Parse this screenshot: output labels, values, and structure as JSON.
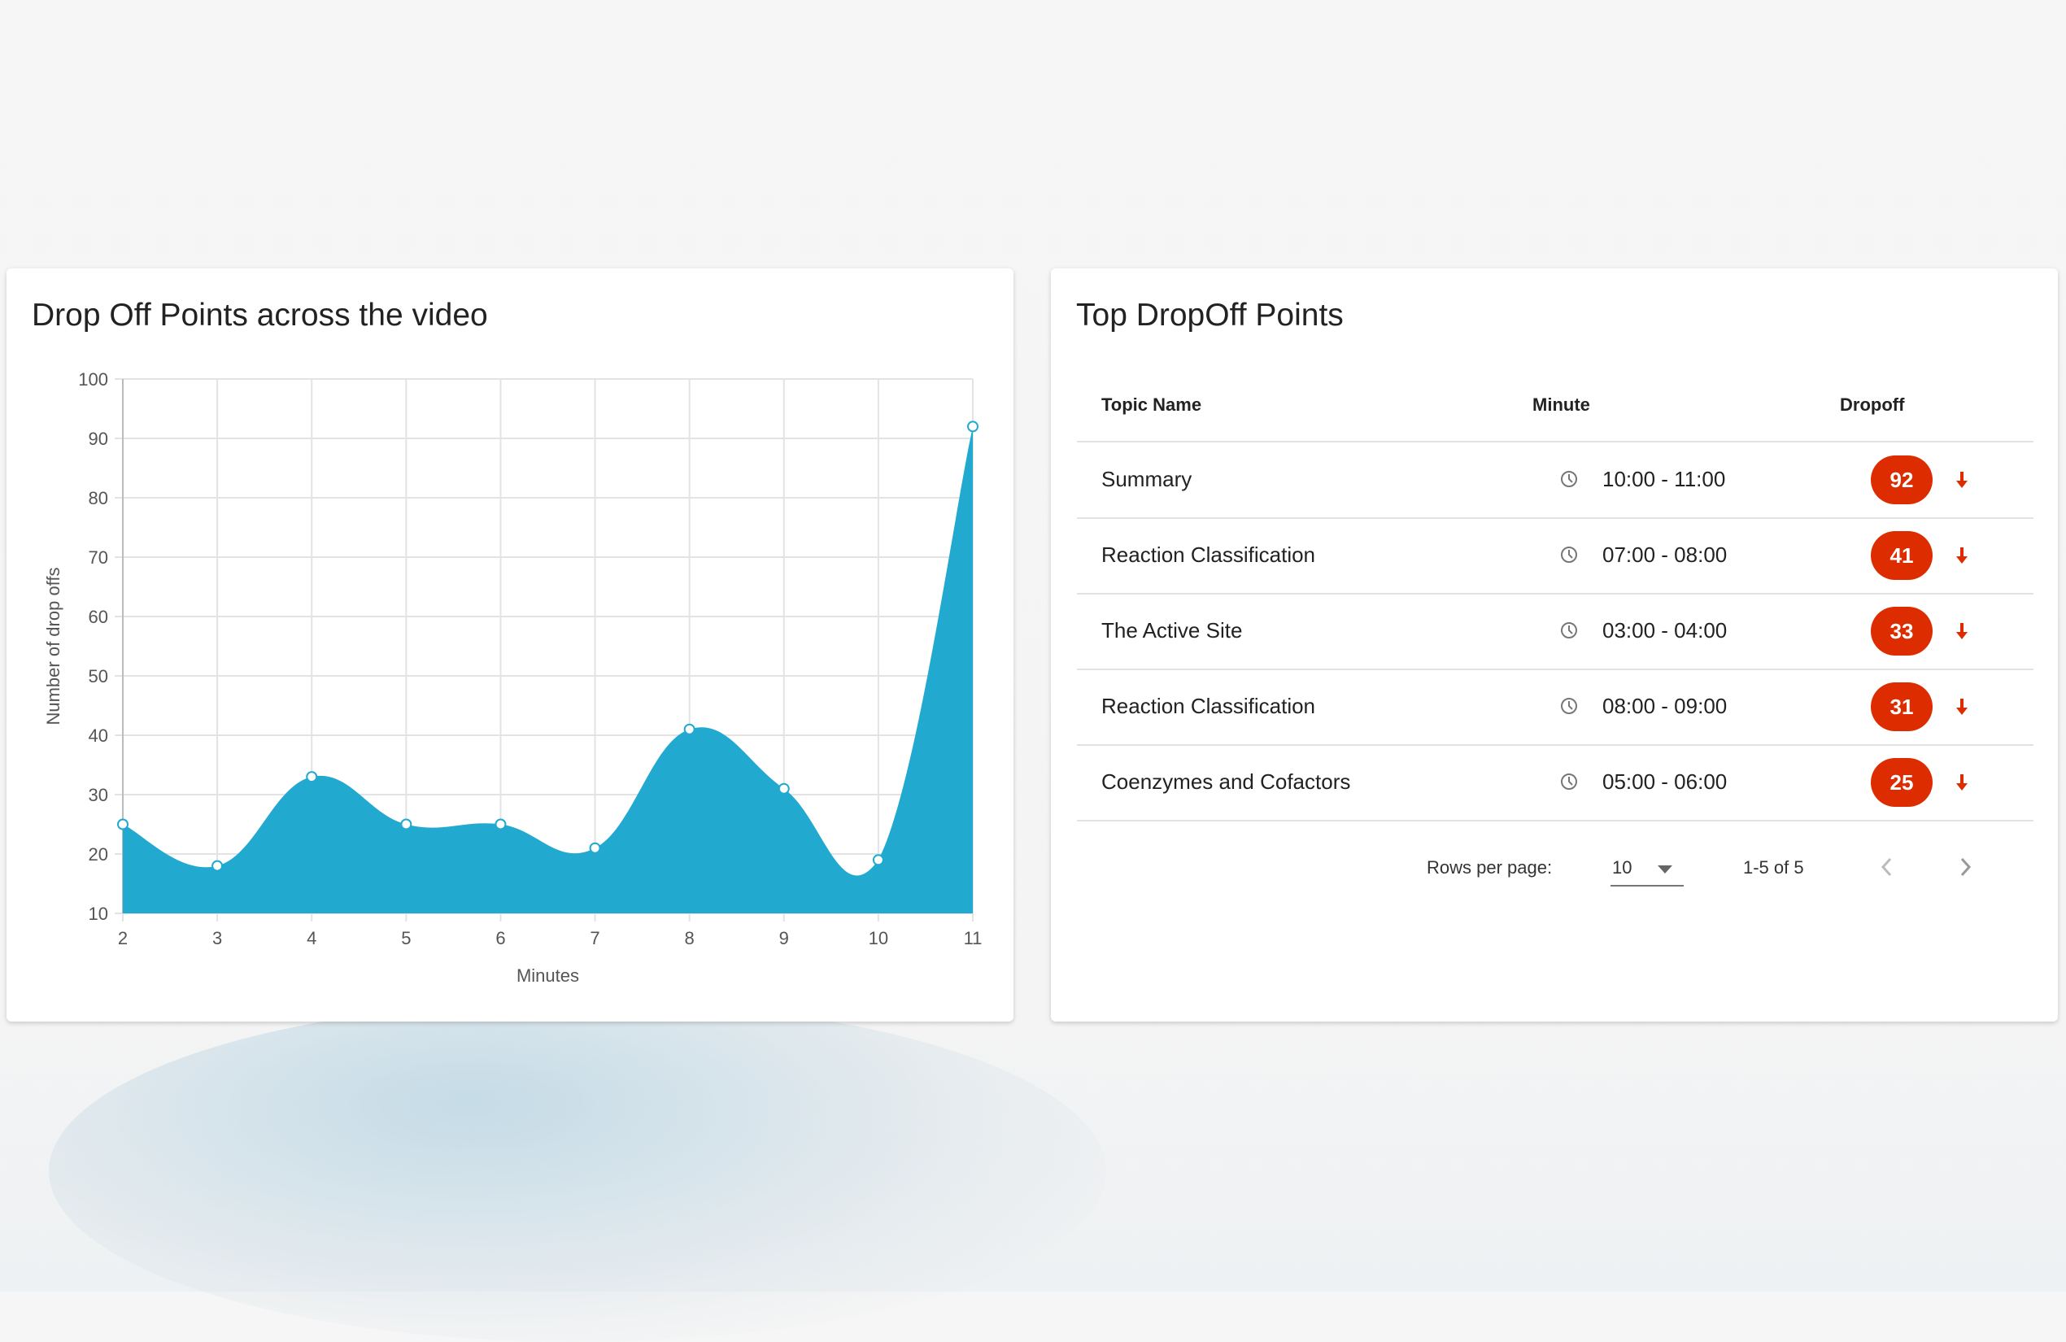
{
  "chart_card": {
    "title": "Drop Off Points across the video"
  },
  "chart_data": {
    "type": "area",
    "x": [
      2,
      3,
      4,
      5,
      6,
      7,
      8,
      9,
      10,
      11
    ],
    "series": [
      {
        "values": [
          25,
          18,
          33,
          25,
          25,
          21,
          41,
          31,
          19,
          92
        ]
      }
    ],
    "xlabel": "Minutes",
    "ylabel": "Number of drop offs",
    "xlim": [
      2,
      11
    ],
    "ylim": [
      10,
      100
    ],
    "yticks": [
      10,
      20,
      30,
      40,
      50,
      60,
      70,
      80,
      90,
      100
    ],
    "xticks": [
      2,
      3,
      4,
      5,
      6,
      7,
      8,
      9,
      10,
      11
    ],
    "grid": true,
    "legend": "none",
    "color": "#22a9d0"
  },
  "table_card": {
    "title": "Top DropOff Points",
    "headers": {
      "topic": "Topic Name",
      "minute": "Minute",
      "dropoff": "Dropoff"
    },
    "rows": [
      {
        "topic": "Summary",
        "minute": "10:00 - 11:00",
        "dropoff": "92"
      },
      {
        "topic": "Reaction Classification",
        "minute": "07:00 - 08:00",
        "dropoff": "41"
      },
      {
        "topic": "The Active Site",
        "minute": "03:00 - 04:00",
        "dropoff": "33"
      },
      {
        "topic": "Reaction Classification",
        "minute": "08:00 - 09:00",
        "dropoff": "31"
      },
      {
        "topic": "Coenzymes and Cofactors",
        "minute": "05:00 - 06:00",
        "dropoff": "25"
      }
    ],
    "badge_color": "#dd2c00",
    "pagination": {
      "rows_per_page_label": "Rows per page:",
      "rows_per_page": "10",
      "range": "1-5 of 5"
    }
  }
}
